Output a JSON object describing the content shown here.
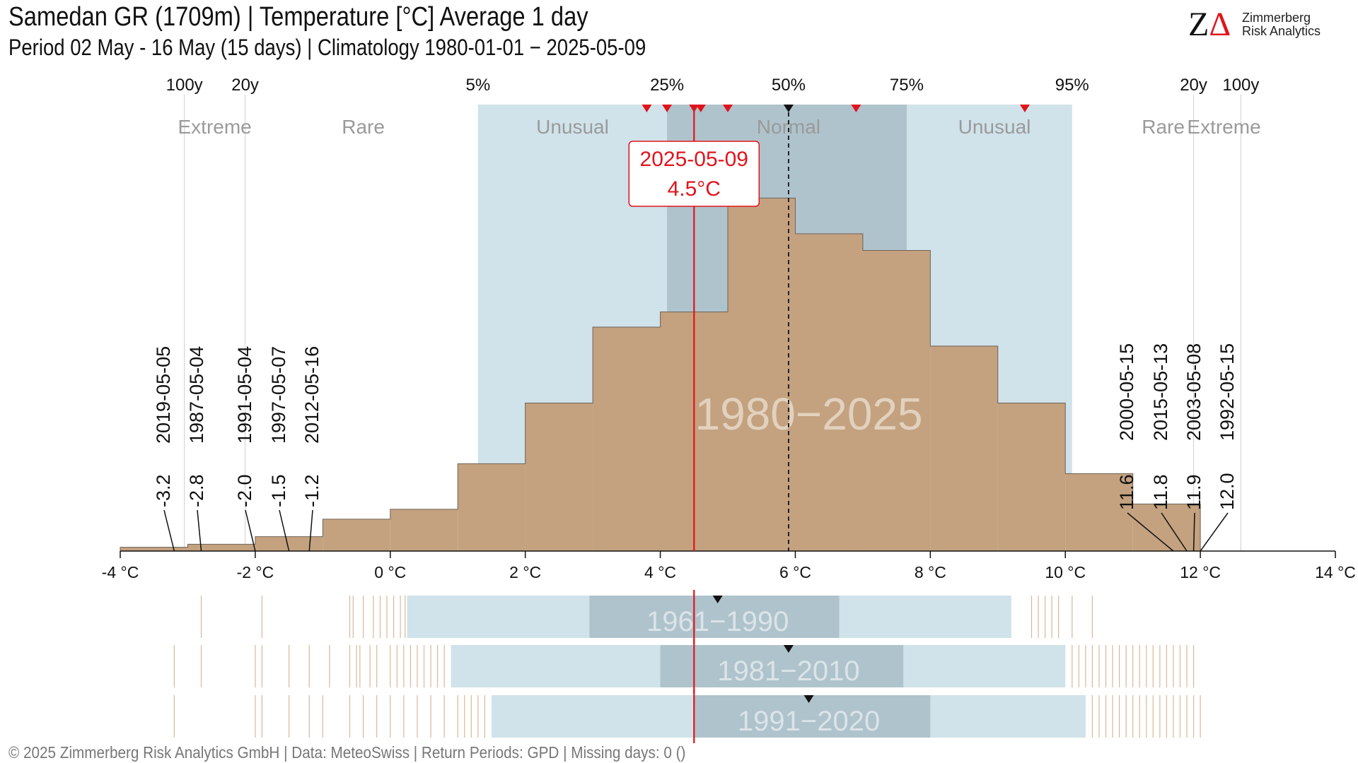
{
  "header": {
    "title": "Samedan  GR (1709m) | Temperature [°C] Average 1 day",
    "subtitle": "Period 02 May - 16 May (15 days) | Climatology 1980-01-01 − 2025-05-09"
  },
  "logo": {
    "mark_z": "Z",
    "mark_delta": "Δ",
    "line1": "Zimmerberg",
    "line2": "Risk Analytics"
  },
  "footer": {
    "text": "©  2025 Zimmerberg Risk Analytics GmbH | Data: MeteoSwiss | Return Periods: GPD | Missing days: 0 ()"
  },
  "colors": {
    "histogram": "#c4a27f",
    "histogram_stroke": "#6e6257",
    "band_unusual": "#d0e2ea",
    "band_normal": "#afc3cc",
    "current": "#e0141c",
    "marker": "#111111",
    "period_ticks": "#d8b79a"
  },
  "chart_data": {
    "type": "histogram",
    "unit": "°C",
    "xlim": [
      -4,
      14
    ],
    "x_ticks": [
      -4,
      -2,
      0,
      2,
      4,
      6,
      8,
      10,
      12,
      14
    ],
    "x_tick_labels": [
      "-4 °C",
      "-2 °C",
      "0 °C",
      "2 °C",
      "4 °C",
      "6 °C",
      "8 °C",
      "10 °C",
      "12 °C",
      "14 °C"
    ],
    "bins": [
      {
        "x0": -4.0,
        "x1": -3.0,
        "count": 5
      },
      {
        "x0": -3.0,
        "x1": -2.0,
        "count": 9
      },
      {
        "x0": -2.0,
        "x1": -1.0,
        "count": 19
      },
      {
        "x0": -1.0,
        "x1": 0.0,
        "count": 42
      },
      {
        "x0": 0.0,
        "x1": 1.0,
        "count": 55
      },
      {
        "x0": 1.0,
        "x1": 2.0,
        "count": 115
      },
      {
        "x0": 2.0,
        "x1": 3.0,
        "count": 195
      },
      {
        "x0": 3.0,
        "x1": 4.0,
        "count": 295
      },
      {
        "x0": 4.0,
        "x1": 5.0,
        "count": 315
      },
      {
        "x0": 5.0,
        "x1": 6.0,
        "count": 465
      },
      {
        "x0": 6.0,
        "x1": 7.0,
        "count": 418
      },
      {
        "x0": 7.0,
        "x1": 8.0,
        "count": 396
      },
      {
        "x0": 8.0,
        "x1": 9.0,
        "count": 270
      },
      {
        "x0": 9.0,
        "x1": 10.0,
        "count": 195
      },
      {
        "x0": 10.0,
        "x1": 11.0,
        "count": 102
      },
      {
        "x0": 11.0,
        "x1": 12.0,
        "count": 62
      }
    ],
    "ylim": [
      0,
      470
    ],
    "watermark": "1980−2025",
    "percentiles": [
      {
        "label": "5%",
        "x": 1.3
      },
      {
        "label": "25%",
        "x": 4.1
      },
      {
        "label": "50%",
        "x": 5.9
      },
      {
        "label": "75%",
        "x": 7.65
      },
      {
        "label": "95%",
        "x": 10.1
      }
    ],
    "return_periods": [
      {
        "label": "100y",
        "x": -3.05
      },
      {
        "label": "20y",
        "x": -2.15
      },
      {
        "label": "20y",
        "x": 11.9
      },
      {
        "label": "100y",
        "x": 12.6
      }
    ],
    "categories": [
      "Extreme",
      "Rare",
      "Unusual",
      "Normal",
      "Unusual",
      "Rare",
      "Extreme"
    ],
    "median": 5.9,
    "recent_markers": [
      3.8,
      4.1,
      4.5,
      4.6,
      5.0,
      6.9,
      9.4
    ],
    "current": {
      "date": "2025-05-09",
      "value": 4.5,
      "value_label": "4.5°C"
    },
    "extremes_low": [
      {
        "date": "2019-05-05",
        "value": -3.2,
        "label": "-3.2"
      },
      {
        "date": "1987-05-04",
        "value": -2.8,
        "label": "-2.8"
      },
      {
        "date": "1991-05-04",
        "value": -2.0,
        "label": "-2.0"
      },
      {
        "date": "1997-05-07",
        "value": -1.5,
        "label": "-1.5"
      },
      {
        "date": "2012-05-16",
        "value": -1.2,
        "label": "-1.2"
      }
    ],
    "extremes_high": [
      {
        "date": "2000-05-15",
        "value": 11.6,
        "label": "11.6"
      },
      {
        "date": "2015-05-13",
        "value": 11.8,
        "label": "11.8"
      },
      {
        "date": "2003-05-08",
        "value": 11.9,
        "label": "11.9"
      },
      {
        "date": "1992-05-15",
        "value": 12.0,
        "label": "12.0"
      }
    ],
    "periods": [
      {
        "label": "1961−1990",
        "p5": 0.25,
        "p25": 2.95,
        "median": 4.85,
        "p75": 6.65,
        "p95": 9.2,
        "tails": [
          -2.8,
          -1.9,
          -0.6,
          -0.55,
          -0.4,
          -0.25,
          -0.15,
          -0.05,
          0.05,
          0.15,
          0.22,
          9.5,
          9.6,
          9.7,
          9.8,
          9.9,
          10.1,
          10.4
        ]
      },
      {
        "label": "1981−2010",
        "p5": 0.9,
        "p25": 4.0,
        "median": 5.9,
        "p75": 7.6,
        "p95": 10.0,
        "tails": [
          -3.2,
          -2.8,
          -2.0,
          -1.9,
          -1.5,
          -1.2,
          -0.9,
          -0.6,
          -0.5,
          -0.45,
          -0.3,
          -0.2,
          0.0,
          0.1,
          0.2,
          0.3,
          0.4,
          0.5,
          0.6,
          0.7,
          0.8,
          10.1,
          10.2,
          10.3,
          10.4,
          10.5,
          10.6,
          10.7,
          10.8,
          10.9,
          11.0,
          11.1,
          11.2,
          11.3,
          11.4,
          11.5,
          11.6,
          11.7,
          11.8,
          11.9
        ]
      },
      {
        "label": "1991−2020",
        "p5": 1.5,
        "p25": 4.5,
        "median": 6.2,
        "p75": 8.0,
        "p95": 10.3,
        "tails": [
          -3.2,
          -2.0,
          -1.9,
          -1.5,
          -1.2,
          -1.0,
          -0.6,
          -0.4,
          -0.2,
          0.0,
          0.2,
          0.4,
          0.6,
          0.8,
          1.0,
          1.1,
          1.2,
          1.3,
          1.4,
          10.4,
          10.5,
          10.6,
          10.7,
          10.8,
          10.9,
          11.0,
          11.1,
          11.2,
          11.3,
          11.4,
          11.5,
          11.6,
          11.7,
          11.8,
          11.9,
          12.0
        ]
      }
    ]
  }
}
